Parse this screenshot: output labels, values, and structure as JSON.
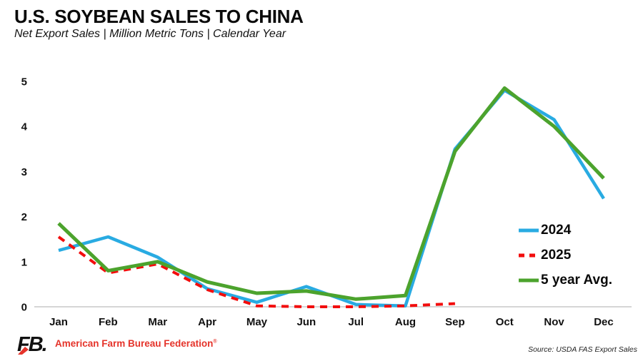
{
  "chart_data": {
    "type": "line",
    "title": "U.S. SOYBEAN SALES TO CHINA",
    "subtitle": "Net Export Sales | Million Metric Tons | Calendar Year",
    "categories": [
      "Jan",
      "Feb",
      "Mar",
      "Apr",
      "May",
      "Jun",
      "Jul",
      "Aug",
      "Sep",
      "Oct",
      "Nov",
      "Dec"
    ],
    "ylim": [
      0,
      5
    ],
    "yticks": [
      0,
      1,
      2,
      3,
      4,
      5
    ],
    "grid": false,
    "legend_position": "inside-right",
    "series": [
      {
        "name": "2024",
        "color": "#29ABE2",
        "line_style": "solid",
        "values": [
          1.25,
          1.55,
          1.1,
          0.4,
          0.1,
          0.45,
          0.05,
          0.02,
          3.5,
          4.8,
          4.15,
          2.4
        ]
      },
      {
        "name": "2025",
        "color": "#F20D0D",
        "line_style": "dashed",
        "values": [
          1.55,
          0.75,
          0.95,
          0.38,
          0.02,
          0,
          0,
          0.02,
          0.07,
          null,
          null,
          null
        ]
      },
      {
        "name": "5 year Avg.",
        "color": "#4CA32D",
        "line_style": "solid",
        "values": [
          1.85,
          0.8,
          1.0,
          0.55,
          0.3,
          0.35,
          0.17,
          0.25,
          3.45,
          4.85,
          4.0,
          2.85
        ]
      }
    ]
  },
  "colors": {
    "axis_line": "#C9C9C9",
    "brand_red": "#E5332A",
    "text": "#0A0A0A"
  },
  "footer": {
    "logo_text": "FB.",
    "org": "American Farm Bureau Federation",
    "reg_mark": "®",
    "source": "Source: USDA FAS Export Sales"
  }
}
